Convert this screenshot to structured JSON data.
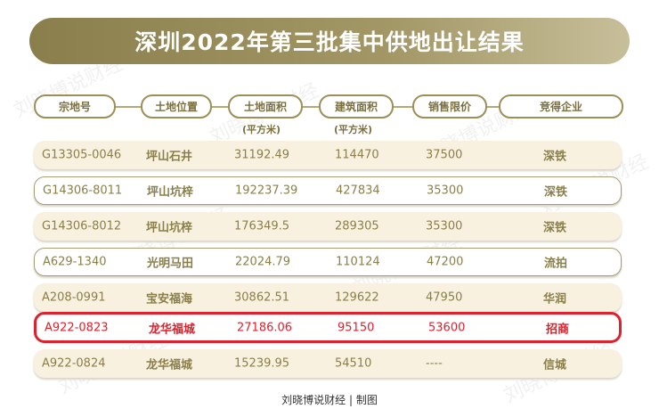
{
  "title": "深圳2022年第三批集中供地出让结果",
  "watermark": "刘晓博说财经",
  "headers": [
    "宗地号",
    "土地位置",
    "土地面积",
    "建筑面积",
    "销售限价",
    "竞得企业"
  ],
  "units": {
    "land_area": "(平方米)",
    "build_area": "(平方米)"
  },
  "rows": [
    [
      "G13305-0046",
      "坪山石井",
      "31192.49",
      "114470",
      "37500",
      "深铁"
    ],
    [
      "G14306-8011",
      "坪山坑梓",
      "192237.39",
      "427834",
      "35300",
      "深铁"
    ],
    [
      "G14306-8012",
      "坪山坑梓",
      "176349.5",
      "289305",
      "35300",
      "深铁"
    ],
    [
      "A629-1340",
      "光明马田",
      "22024.79",
      "110124",
      "47200",
      "流拍"
    ],
    [
      "A208-0991",
      "宝安福海",
      "30862.51",
      "129622",
      "47950",
      "华润"
    ],
    [
      "A922-0823",
      "龙华福城",
      "27186.06",
      "95150",
      "53600",
      "招商"
    ],
    [
      "A922-0824",
      "龙华福城",
      "15239.95",
      "54510",
      "----",
      "信城"
    ]
  ],
  "highlight_row": 5,
  "colors": {
    "accent": "#8a7f4c",
    "highlight": "#e0202c",
    "row_fill": "#f8f1df"
  },
  "footer": "刘晓博说财经 | 制图"
}
